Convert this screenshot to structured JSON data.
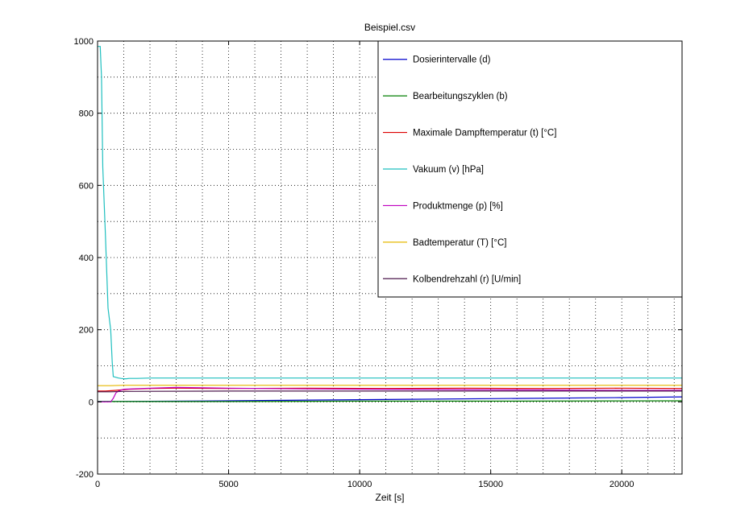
{
  "chart_data": {
    "type": "line",
    "title": "Beispiel.csv",
    "xlabel": "Zeit [s]",
    "ylabel": "",
    "xlim": [
      0,
      22300
    ],
    "ylim": [
      -200,
      1000
    ],
    "x_ticks": [
      0,
      5000,
      10000,
      15000,
      20000
    ],
    "y_ticks": [
      -200,
      0,
      200,
      400,
      600,
      800,
      1000
    ],
    "grid": true,
    "legend_position": "top-right",
    "series": [
      {
        "name": "Dosierintervalle (d)",
        "color": "#0000cc",
        "x": [
          0,
          500,
          5000,
          10000,
          15000,
          20000,
          22300
        ],
        "y": [
          1,
          1,
          3,
          6,
          9,
          12,
          14
        ]
      },
      {
        "name": "Bearbeitungszyklen (b)",
        "color": "#007f00",
        "x": [
          0,
          5000,
          10000,
          15000,
          22300
        ],
        "y": [
          1,
          1,
          2,
          2,
          3
        ]
      },
      {
        "name": "Maximale Dampftemperatur (t) [°C]",
        "color": "#dd0000",
        "x": [
          0,
          300,
          700,
          1200,
          2000,
          3000,
          5000,
          8000,
          11000,
          14000,
          17000,
          20000,
          22300
        ],
        "y": [
          30,
          30,
          32,
          35,
          37,
          38,
          37,
          38,
          37,
          38,
          37,
          38,
          37
        ]
      },
      {
        "name": "Vakuum (v) [hPa]",
        "color": "#1fbfbf",
        "x": [
          0,
          100,
          150,
          200,
          300,
          400,
          500,
          560,
          600,
          700,
          800,
          900,
          1000,
          1100,
          1200,
          1500,
          2000,
          3000,
          4000,
          5000,
          6000,
          7000,
          8000,
          9000,
          10000,
          11000,
          12000,
          13000,
          14000,
          15000,
          16000,
          17000,
          18000,
          19000,
          20000,
          21000,
          22000,
          22300
        ],
        "y": [
          985,
          985,
          900,
          650,
          460,
          260,
          200,
          110,
          70,
          68,
          66,
          65,
          64,
          64,
          65,
          65,
          66,
          66,
          66,
          66,
          66,
          66,
          66,
          66,
          66,
          66,
          66,
          66,
          66,
          66,
          66,
          66,
          66,
          66,
          66,
          66,
          66,
          66
        ]
      },
      {
        "name": "Produktmenge (p) [%]",
        "color": "#bf00bf",
        "x": [
          0,
          300,
          500,
          600,
          700,
          800,
          1000,
          2000,
          3000,
          5000,
          8000,
          11000,
          14000,
          17000,
          20000,
          22300
        ],
        "y": [
          0,
          0,
          0,
          10,
          25,
          30,
          35,
          38,
          40,
          38,
          36,
          35,
          34,
          33,
          32,
          32
        ]
      },
      {
        "name": "Badtemperatur (T) [°C]",
        "color": "#e6b800",
        "x": [
          0,
          200,
          500,
          1000,
          5000,
          10000,
          15000,
          20000,
          22300
        ],
        "y": [
          45,
          45,
          45,
          46,
          46,
          46,
          46,
          46,
          46
        ]
      },
      {
        "name": "Kolbendrehzahl (r) [U/min]",
        "color": "#4d1a4d",
        "x": [
          0,
          500,
          1000,
          5000,
          10000,
          15000,
          20000,
          22300
        ],
        "y": [
          28,
          28,
          29,
          30,
          30,
          30,
          30,
          30
        ]
      }
    ]
  }
}
